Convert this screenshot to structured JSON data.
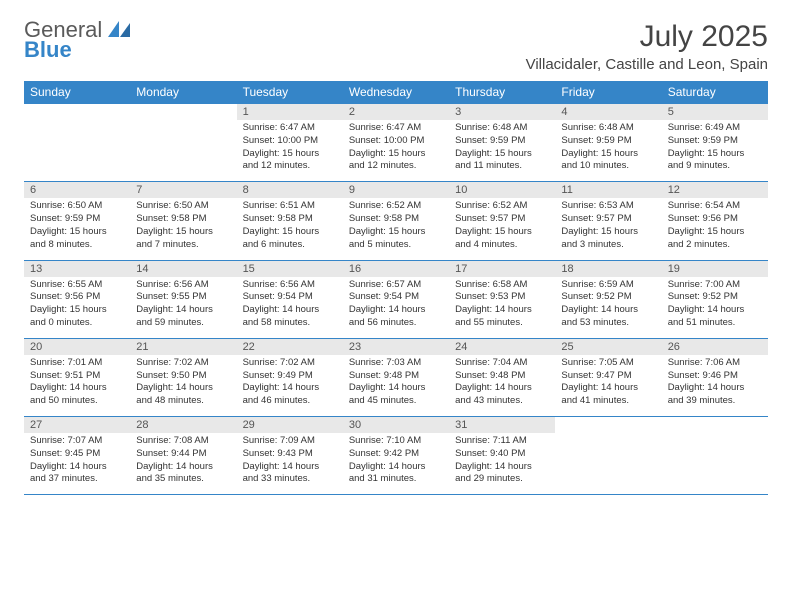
{
  "brand": {
    "primary": "General",
    "secondary": "Blue"
  },
  "title": "July 2025",
  "location": "Villacidaler, Castille and Leon, Spain",
  "colors": {
    "header_bg": "#3585c8",
    "header_fg": "#ffffff",
    "daynum_bg": "#e8e8e8",
    "text": "#333333"
  },
  "days_of_week": [
    "Sunday",
    "Monday",
    "Tuesday",
    "Wednesday",
    "Thursday",
    "Friday",
    "Saturday"
  ],
  "weeks": [
    [
      null,
      null,
      {
        "n": "1",
        "sr": "6:47 AM",
        "ss": "10:00 PM",
        "dl": "15 hours and 12 minutes."
      },
      {
        "n": "2",
        "sr": "6:47 AM",
        "ss": "10:00 PM",
        "dl": "15 hours and 12 minutes."
      },
      {
        "n": "3",
        "sr": "6:48 AM",
        "ss": "9:59 PM",
        "dl": "15 hours and 11 minutes."
      },
      {
        "n": "4",
        "sr": "6:48 AM",
        "ss": "9:59 PM",
        "dl": "15 hours and 10 minutes."
      },
      {
        "n": "5",
        "sr": "6:49 AM",
        "ss": "9:59 PM",
        "dl": "15 hours and 9 minutes."
      }
    ],
    [
      {
        "n": "6",
        "sr": "6:50 AM",
        "ss": "9:59 PM",
        "dl": "15 hours and 8 minutes."
      },
      {
        "n": "7",
        "sr": "6:50 AM",
        "ss": "9:58 PM",
        "dl": "15 hours and 7 minutes."
      },
      {
        "n": "8",
        "sr": "6:51 AM",
        "ss": "9:58 PM",
        "dl": "15 hours and 6 minutes."
      },
      {
        "n": "9",
        "sr": "6:52 AM",
        "ss": "9:58 PM",
        "dl": "15 hours and 5 minutes."
      },
      {
        "n": "10",
        "sr": "6:52 AM",
        "ss": "9:57 PM",
        "dl": "15 hours and 4 minutes."
      },
      {
        "n": "11",
        "sr": "6:53 AM",
        "ss": "9:57 PM",
        "dl": "15 hours and 3 minutes."
      },
      {
        "n": "12",
        "sr": "6:54 AM",
        "ss": "9:56 PM",
        "dl": "15 hours and 2 minutes."
      }
    ],
    [
      {
        "n": "13",
        "sr": "6:55 AM",
        "ss": "9:56 PM",
        "dl": "15 hours and 0 minutes."
      },
      {
        "n": "14",
        "sr": "6:56 AM",
        "ss": "9:55 PM",
        "dl": "14 hours and 59 minutes."
      },
      {
        "n": "15",
        "sr": "6:56 AM",
        "ss": "9:54 PM",
        "dl": "14 hours and 58 minutes."
      },
      {
        "n": "16",
        "sr": "6:57 AM",
        "ss": "9:54 PM",
        "dl": "14 hours and 56 minutes."
      },
      {
        "n": "17",
        "sr": "6:58 AM",
        "ss": "9:53 PM",
        "dl": "14 hours and 55 minutes."
      },
      {
        "n": "18",
        "sr": "6:59 AM",
        "ss": "9:52 PM",
        "dl": "14 hours and 53 minutes."
      },
      {
        "n": "19",
        "sr": "7:00 AM",
        "ss": "9:52 PM",
        "dl": "14 hours and 51 minutes."
      }
    ],
    [
      {
        "n": "20",
        "sr": "7:01 AM",
        "ss": "9:51 PM",
        "dl": "14 hours and 50 minutes."
      },
      {
        "n": "21",
        "sr": "7:02 AM",
        "ss": "9:50 PM",
        "dl": "14 hours and 48 minutes."
      },
      {
        "n": "22",
        "sr": "7:02 AM",
        "ss": "9:49 PM",
        "dl": "14 hours and 46 minutes."
      },
      {
        "n": "23",
        "sr": "7:03 AM",
        "ss": "9:48 PM",
        "dl": "14 hours and 45 minutes."
      },
      {
        "n": "24",
        "sr": "7:04 AM",
        "ss": "9:48 PM",
        "dl": "14 hours and 43 minutes."
      },
      {
        "n": "25",
        "sr": "7:05 AM",
        "ss": "9:47 PM",
        "dl": "14 hours and 41 minutes."
      },
      {
        "n": "26",
        "sr": "7:06 AM",
        "ss": "9:46 PM",
        "dl": "14 hours and 39 minutes."
      }
    ],
    [
      {
        "n": "27",
        "sr": "7:07 AM",
        "ss": "9:45 PM",
        "dl": "14 hours and 37 minutes."
      },
      {
        "n": "28",
        "sr": "7:08 AM",
        "ss": "9:44 PM",
        "dl": "14 hours and 35 minutes."
      },
      {
        "n": "29",
        "sr": "7:09 AM",
        "ss": "9:43 PM",
        "dl": "14 hours and 33 minutes."
      },
      {
        "n": "30",
        "sr": "7:10 AM",
        "ss": "9:42 PM",
        "dl": "14 hours and 31 minutes."
      },
      {
        "n": "31",
        "sr": "7:11 AM",
        "ss": "9:40 PM",
        "dl": "14 hours and 29 minutes."
      },
      null,
      null
    ]
  ],
  "labels": {
    "sunrise": "Sunrise:",
    "sunset": "Sunset:",
    "daylight": "Daylight:"
  }
}
